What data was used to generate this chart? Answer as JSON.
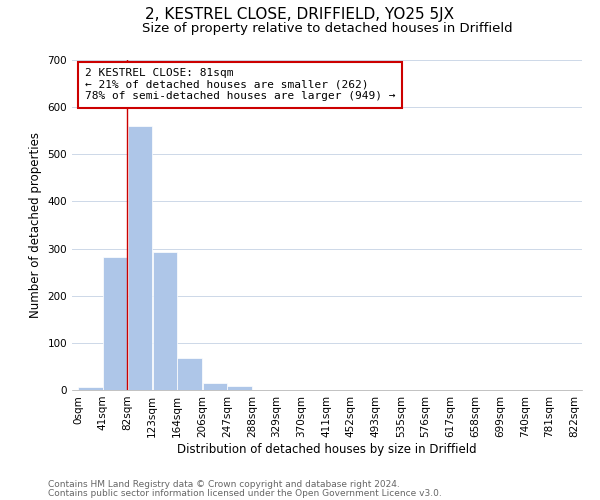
{
  "title": "2, KESTREL CLOSE, DRIFFIELD, YO25 5JX",
  "subtitle": "Size of property relative to detached houses in Driffield",
  "xlabel": "Distribution of detached houses by size in Driffield",
  "ylabel": "Number of detached properties",
  "bar_edges": [
    0,
    41,
    82,
    123,
    164,
    206,
    247,
    288,
    329,
    370,
    411,
    452,
    493,
    535,
    576,
    617,
    658,
    699,
    740,
    781,
    822
  ],
  "bar_heights": [
    7,
    282,
    560,
    293,
    68,
    14,
    8,
    0,
    0,
    0,
    0,
    0,
    0,
    0,
    0,
    0,
    0,
    0,
    0,
    0
  ],
  "bar_color": "#aec6e8",
  "vline_x": 81,
  "vline_color": "#cc0000",
  "ylim": [
    0,
    700
  ],
  "yticks": [
    0,
    100,
    200,
    300,
    400,
    500,
    600,
    700
  ],
  "tick_labels": [
    "0sqm",
    "41sqm",
    "82sqm",
    "123sqm",
    "164sqm",
    "206sqm",
    "247sqm",
    "288sqm",
    "329sqm",
    "370sqm",
    "411sqm",
    "452sqm",
    "493sqm",
    "535sqm",
    "576sqm",
    "617sqm",
    "658sqm",
    "699sqm",
    "740sqm",
    "781sqm",
    "822sqm"
  ],
  "annotation_line1": "2 KESTREL CLOSE: 81sqm",
  "annotation_line2": "← 21% of detached houses are smaller (262)",
  "annotation_line3": "78% of semi-detached houses are larger (949) →",
  "footer_line1": "Contains HM Land Registry data © Crown copyright and database right 2024.",
  "footer_line2": "Contains public sector information licensed under the Open Government Licence v3.0.",
  "background_color": "#ffffff",
  "grid_color": "#cdd8e8",
  "title_fontsize": 11,
  "subtitle_fontsize": 9.5,
  "axis_label_fontsize": 8.5,
  "tick_fontsize": 7.5,
  "annotation_fontsize": 8,
  "footer_fontsize": 6.5
}
